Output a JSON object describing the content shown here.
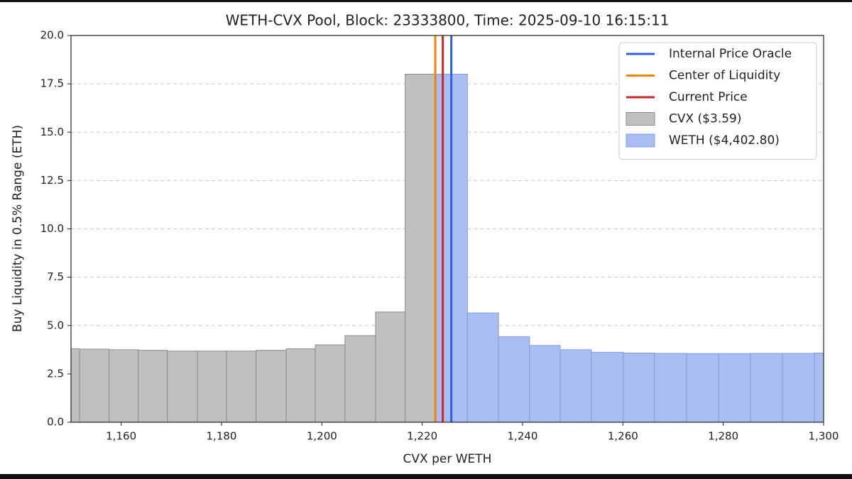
{
  "chart_data": {
    "type": "histogram",
    "title": "WETH-CVX Pool, Block: 23333800, Time: 2025-09-10 16:15:11",
    "x_label": "CVX per WETH",
    "y_label": "Buy Liquidity in 0.5% Range (ETH)",
    "xlim": [
      1150,
      1300
    ],
    "xticks": [
      {
        "value": 1160,
        "label": "1,160"
      },
      {
        "value": 1180,
        "label": "1,180"
      },
      {
        "value": 1200,
        "label": "1,200"
      },
      {
        "value": 1220,
        "label": "1,220"
      },
      {
        "value": 1240,
        "label": "1,240"
      },
      {
        "value": 1260,
        "label": "1,260"
      },
      {
        "value": 1280,
        "label": "1,280"
      },
      {
        "value": 1300,
        "label": "1,300"
      }
    ],
    "ylim": [
      0,
      20
    ],
    "yticks": [
      {
        "value": 0,
        "label": "0.0"
      },
      2.5,
      {
        "value": 5,
        "label": "5.0"
      },
      7.5,
      {
        "value": 10,
        "label": "10.0"
      },
      12.5,
      {
        "value": 15,
        "label": "15.0"
      },
      17.5,
      {
        "value": 20,
        "label": "20.0"
      }
    ],
    "grid": true,
    "legend": "upper right",
    "lines": [
      {
        "name": "Internal Price Oracle",
        "color": "#3060d8",
        "x": 1225.8
      },
      {
        "name": "Center of Liquidity",
        "color": "#f0850a",
        "x": 1222.6
      },
      {
        "name": "Current Price",
        "color": "#c8282a",
        "x": 1224.1
      }
    ],
    "series": [
      {
        "name": "CVX ($3.59)",
        "color": "#c0c0c0",
        "edge": "#8c8c8c",
        "bins": [
          1145.9,
          1151.7,
          1157.6,
          1163.4,
          1169.2,
          1175.2,
          1181.0,
          1186.9,
          1192.9,
          1198.7,
          1204.6,
          1210.7,
          1216.6,
          1222.7
        ],
        "values": [
          3.8,
          3.78,
          3.75,
          3.72,
          3.68,
          3.68,
          3.68,
          3.72,
          3.8,
          4.0,
          4.48,
          5.7,
          18.0
        ]
      },
      {
        "name": "WETH ($4,402.80)",
        "color": "#a9bdf0",
        "edge": "#7f9be6",
        "bins": [
          1222.8,
          1229.0,
          1235.2,
          1241.4,
          1247.5,
          1253.7,
          1260.1,
          1266.3,
          1272.7,
          1279.1,
          1285.4,
          1291.8,
          1298.2,
          1304.6
        ],
        "values": [
          18.0,
          5.65,
          4.42,
          3.97,
          3.75,
          3.62,
          3.58,
          3.56,
          3.55,
          3.55,
          3.56,
          3.56,
          3.58
        ]
      }
    ]
  }
}
